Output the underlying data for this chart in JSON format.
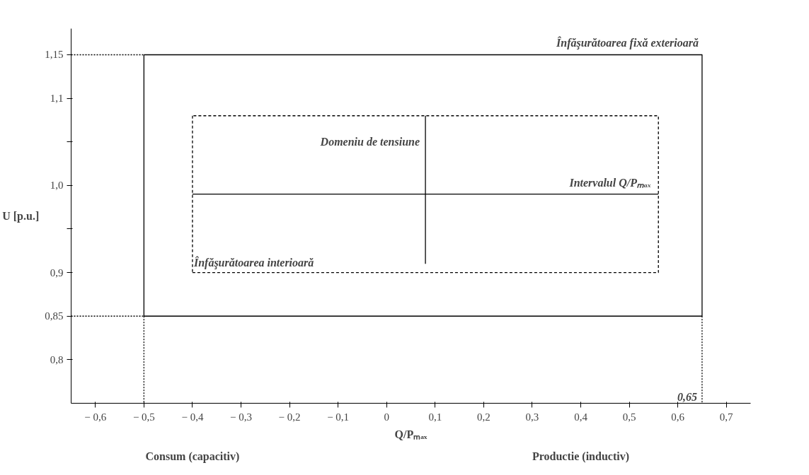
{
  "chart_data": {
    "type": "line",
    "xlabel": "Q/Pₘₐₓ",
    "ylabel": "U [p.u.]",
    "xlim": [
      -0.65,
      0.75
    ],
    "ylim": [
      0.75,
      1.18
    ],
    "xticks": [
      {
        "value": -0.6,
        "label": "− 0,6"
      },
      {
        "value": -0.5,
        "label": "− 0,5"
      },
      {
        "value": -0.4,
        "label": "− 0,4"
      },
      {
        "value": -0.3,
        "label": "− 0,3"
      },
      {
        "value": -0.2,
        "label": "− 0,2"
      },
      {
        "value": -0.1,
        "label": "− 0,1"
      },
      0,
      {
        "value": 0.1,
        "label": "0,1"
      },
      {
        "value": 0.2,
        "label": "0,2"
      },
      {
        "value": 0.3,
        "label": "0,3"
      },
      {
        "value": 0.4,
        "label": "0,4"
      },
      {
        "value": 0.5,
        "label": "0,5"
      },
      {
        "value": 0.6,
        "label": "0,6"
      },
      {
        "value": 0.7,
        "label": "0,7"
      }
    ],
    "yticks": [
      {
        "value": 0.8,
        "label": "0,8"
      },
      {
        "value": 0.85,
        "label": "0,85"
      },
      {
        "value": 0.9,
        "label": "0,9"
      },
      {
        "value": 0.95,
        "label": null
      },
      {
        "value": 1.0,
        "label": "1,0"
      },
      {
        "value": 1.05,
        "label": null
      },
      {
        "value": 1.1,
        "label": "1,1"
      },
      {
        "value": 1.15,
        "label": "1,15"
      }
    ],
    "grid": false,
    "marker": "none",
    "series": [
      {
        "color": "#000000",
        "line_style": "solid",
        "x": [
          -0.5,
          0.65,
          0.65,
          -0.5
        ],
        "values": [
          0.85,
          0.85,
          1.15,
          1.15
        ]
      },
      {
        "color": "#000000",
        "line_style": "solid",
        "x": [
          -0.5,
          -0.5
        ],
        "values": [
          1.15,
          0.85
        ]
      },
      {
        "color": "#000000",
        "line_style": "dashed",
        "x": [
          -0.4,
          0.56,
          0.56,
          -0.4
        ],
        "values": [
          0.9,
          0.9,
          1.08,
          1.08
        ]
      },
      {
        "color": "#000000",
        "line_style": "dashed",
        "x": [
          -0.4,
          -0.4
        ],
        "values": [
          1.08,
          0.9
        ]
      },
      {
        "color": "#000000",
        "line_style": "dotted",
        "x": [
          -0.65,
          -0.5
        ],
        "values": [
          1.15,
          1.15
        ]
      },
      {
        "color": "#000000",
        "line_style": "dotted",
        "x": [
          -0.65,
          -0.5
        ],
        "values": [
          0.85,
          0.85
        ]
      },
      {
        "color": "#000000",
        "line_style": "dotted",
        "x": [
          -0.5,
          -0.5
        ],
        "values": [
          0.85,
          0.75
        ]
      },
      {
        "color": "#000000",
        "line_style": "dotted",
        "x": [
          0.65,
          0.65
        ],
        "values": [
          0.85,
          0.75
        ]
      },
      {
        "color": "#000000",
        "line_style": "solid",
        "x": [
          -0.4,
          0.56
        ],
        "values": [
          0.99,
          0.99
        ]
      },
      {
        "color": "#000000",
        "line_style": "solid",
        "x": [
          0.08,
          0.08
        ],
        "values": [
          0.91,
          1.08
        ]
      }
    ],
    "annotations": [
      {
        "text": "Înfăşurătoarea fixă exterioară",
        "x": 0.65,
        "y": 1.15
      },
      {
        "text": "Domeniu de tensiune",
        "x": 0.08,
        "y": 1.05
      },
      {
        "text": "Intervalul Q/Pₘₐₓ",
        "x": 0.56,
        "y": 0.99
      },
      {
        "text": "Înfăşurătoarea interioară",
        "x": -0.4,
        "y": 0.9
      },
      {
        "text": "0,65",
        "x": 0.65,
        "y": 0.75
      },
      "Consum (capacitiv)",
      "Productie (inductiv)"
    ]
  }
}
